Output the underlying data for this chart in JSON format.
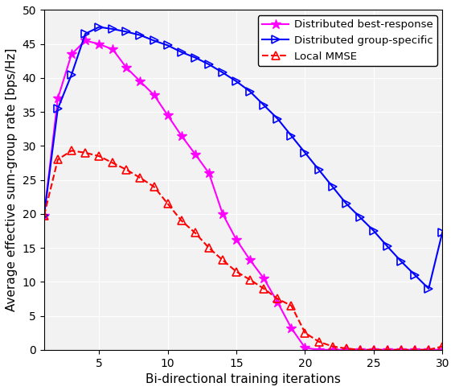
{
  "title": "",
  "xlabel": "Bi-directional training iterations",
  "ylabel": "Average effective sum-group rate [bps/Hz]",
  "xlim": [
    1,
    30
  ],
  "ylim": [
    0,
    50
  ],
  "xticks": [
    5,
    10,
    15,
    20,
    25,
    30
  ],
  "yticks": [
    0,
    5,
    10,
    15,
    20,
    25,
    30,
    35,
    40,
    45,
    50
  ],
  "distributed_best_response": {
    "x": [
      1,
      2,
      3,
      4,
      5,
      6,
      7,
      8,
      9,
      10,
      11,
      12,
      13,
      14,
      15,
      16,
      17,
      18,
      19,
      20,
      21,
      22,
      23,
      24,
      25,
      26,
      27,
      28,
      29,
      30
    ],
    "y": [
      19.8,
      37.0,
      43.5,
      45.5,
      45.0,
      44.2,
      41.5,
      39.5,
      37.5,
      34.5,
      31.5,
      28.8,
      26.0,
      20.0,
      16.2,
      13.2,
      10.5,
      7.0,
      3.2,
      0.3,
      0.0,
      0.0,
      0.0,
      0.0,
      0.0,
      0.0,
      0.0,
      0.0,
      0.0,
      0.0
    ],
    "color": "#ff00ff",
    "linestyle": "-",
    "marker": "*",
    "markersize": 9,
    "linewidth": 1.5,
    "label": "Distributed best-response"
  },
  "distributed_group_specific": {
    "x": [
      1,
      2,
      3,
      4,
      5,
      6,
      7,
      8,
      9,
      10,
      11,
      12,
      13,
      14,
      15,
      16,
      17,
      18,
      19,
      20,
      21,
      22,
      23,
      24,
      25,
      26,
      27,
      28,
      29,
      30
    ],
    "y": [
      19.8,
      35.5,
      40.5,
      46.5,
      47.5,
      47.2,
      46.8,
      46.3,
      45.5,
      44.8,
      43.8,
      43.0,
      42.0,
      40.8,
      39.5,
      38.0,
      36.0,
      34.0,
      31.5,
      29.0,
      26.5,
      24.0,
      21.5,
      19.5,
      17.5,
      15.2,
      13.0,
      11.0,
      9.0,
      17.3
    ],
    "color": "#0000ff",
    "linestyle": "-",
    "marker": ">",
    "markersize": 7,
    "linewidth": 1.5,
    "label": "Distributed group-specific"
  },
  "local_mmse": {
    "x": [
      1,
      2,
      3,
      4,
      5,
      6,
      7,
      8,
      9,
      10,
      11,
      12,
      13,
      14,
      15,
      16,
      17,
      18,
      19,
      20,
      21,
      22,
      23,
      24,
      25,
      26,
      27,
      28,
      29,
      30
    ],
    "y": [
      19.8,
      28.0,
      29.3,
      29.0,
      28.5,
      27.5,
      26.5,
      25.3,
      24.0,
      21.5,
      19.0,
      17.2,
      15.0,
      13.2,
      11.5,
      10.3,
      9.0,
      7.5,
      6.5,
      2.5,
      1.2,
      0.5,
      0.2,
      0.0,
      0.0,
      0.0,
      0.0,
      0.0,
      0.0,
      0.5
    ],
    "color": "#ff0000",
    "linestyle": "--",
    "marker": "^",
    "markersize": 7,
    "linewidth": 1.5,
    "label": "Local MMSE"
  },
  "legend_loc": "upper right",
  "background_color": "#f2f2f2",
  "grid_color": "#ffffff",
  "fig_facecolor": "#ffffff"
}
